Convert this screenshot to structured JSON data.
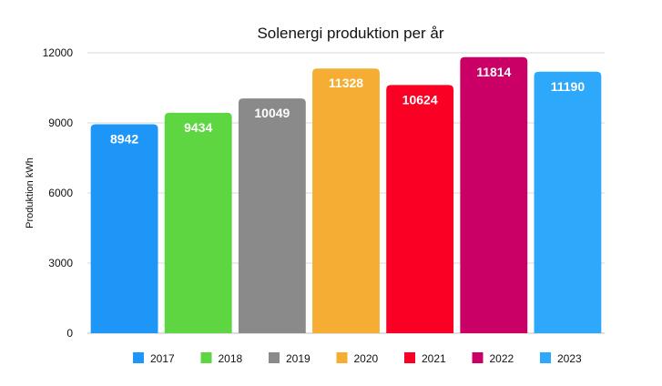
{
  "chart_data": {
    "type": "bar",
    "title": "Solenergi produktion per år",
    "xlabel": "",
    "ylabel": "Produktion kWh",
    "ylim": [
      0,
      12000
    ],
    "yticks": [
      0,
      3000,
      6000,
      9000,
      12000
    ],
    "grid": true,
    "legend_position": "bottom",
    "categories": [
      "2017",
      "2018",
      "2019",
      "2020",
      "2021",
      "2022",
      "2023"
    ],
    "values": [
      8942,
      9434,
      10049,
      11328,
      10624,
      11814,
      11190
    ],
    "data_labels": [
      "8942",
      "9434",
      "10049",
      "11328",
      "10624",
      "11814",
      "11190"
    ],
    "colors": [
      "#1e96f7",
      "#5dd641",
      "#8a8a8a",
      "#f5ad33",
      "#fb0025",
      "#cb0066",
      "#2da8fb"
    ]
  }
}
